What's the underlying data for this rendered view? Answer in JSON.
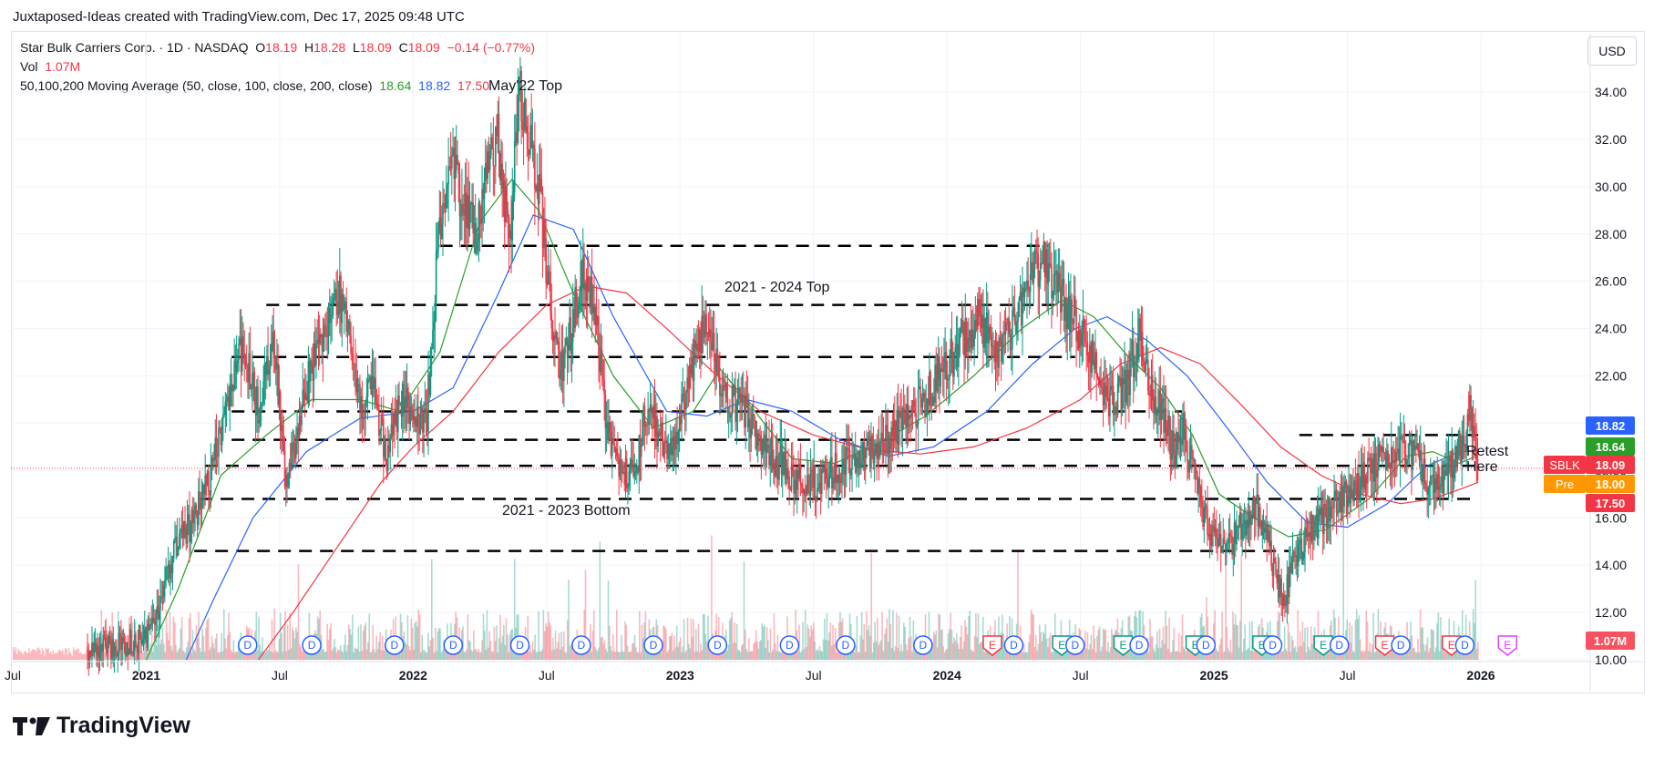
{
  "header": {
    "attribution": "Juxtaposed-Ideas created with TradingView.com, Dec 17, 2025 09:48 UTC"
  },
  "legend": {
    "symbol_line": "Star Bulk Carriers Corp. · 1D · NASDAQ",
    "o_label": "O",
    "o_value": "18.19",
    "h_label": "H",
    "h_value": "18.28",
    "l_label": "L",
    "l_value": "18.09",
    "c_label": "C",
    "c_value": "18.09",
    "change": "−0.14 (−0.77%)",
    "vol_label": "Vol",
    "vol_value": "1.07M",
    "ma_label": "50,100,200 Moving Average (50, close, 100, close, 200, close)",
    "ma50": "18.64",
    "ma100": "18.82",
    "ma200": "17.50"
  },
  "currency_button": "USD",
  "colors": {
    "up": "#089981",
    "down": "#f23645",
    "ma50": "#2a9d2a",
    "ma100": "#2962ff",
    "ma200": "#f23645",
    "pre": "#ff9800",
    "vol_badge": "#f7525f"
  },
  "price_labels": [
    {
      "label": "",
      "value": "18.82",
      "color": "#2962ff"
    },
    {
      "label": "",
      "value": "18.64",
      "color": "#2a9d2a"
    },
    {
      "label": "SBLK",
      "value": "18.09",
      "color": "#f23645"
    },
    {
      "label": "Pre",
      "value": "18.00",
      "color": "#ff9800"
    },
    {
      "label": "",
      "value": "17.50",
      "color": "#f23645"
    }
  ],
  "volume_badge": "1.07M",
  "annotations": {
    "may22": "May'22 Top",
    "top_2124": "2021 - 2024 Top",
    "bottom_2123": "2021 - 2023 Bottom",
    "retest_1": "Retest",
    "retest_2": "Here"
  },
  "event_markers": [
    {
      "label": "D",
      "t": 2021.38
    },
    {
      "label": "D",
      "t": 2021.62
    },
    {
      "label": "D",
      "t": 2021.93
    },
    {
      "label": "D",
      "t": 2022.15
    },
    {
      "label": "D",
      "t": 2022.4
    },
    {
      "label": "D",
      "t": 2022.63
    },
    {
      "label": "D",
      "t": 2022.9
    },
    {
      "label": "D",
      "t": 2023.14
    },
    {
      "label": "D",
      "t": 2023.41
    },
    {
      "label": "D",
      "t": 2023.62
    },
    {
      "label": "D",
      "t": 2023.91
    },
    {
      "label": "E",
      "t": 2024.17
    },
    {
      "label": "D",
      "t": 2024.25
    },
    {
      "label": "E",
      "t": 2024.43
    },
    {
      "label": "D",
      "t": 2024.48
    },
    {
      "label": "E",
      "t": 2024.66
    },
    {
      "label": "D",
      "t": 2024.72
    },
    {
      "label": "E",
      "t": 2024.93
    },
    {
      "label": "D",
      "t": 2024.97
    },
    {
      "label": "E",
      "t": 2025.18
    },
    {
      "label": "D",
      "t": 2025.22
    },
    {
      "label": "E",
      "t": 2025.41
    },
    {
      "label": "D",
      "t": 2025.47
    },
    {
      "label": "E",
      "t": 2025.64
    },
    {
      "label": "D",
      "t": 2025.7
    },
    {
      "label": "E",
      "t": 2025.89
    },
    {
      "label": "D",
      "t": 2025.94
    },
    {
      "label": "E",
      "t": 2026.1
    }
  ],
  "chart_data": {
    "type": "candlestick",
    "title": "Star Bulk Carriers Corp. · 1D · NASDAQ",
    "y_axis": {
      "ticks": [
        "10.00",
        "12.00",
        "14.00",
        "16.00",
        "18.00",
        "20.00",
        "22.00",
        "24.00",
        "26.00",
        "28.00",
        "30.00",
        "32.00",
        "34.00"
      ],
      "range": [
        10,
        34.6
      ]
    },
    "x_axis": {
      "ticks": [
        "Jul",
        "2021",
        "Jul",
        "2022",
        "Jul",
        "2023",
        "Jul",
        "2024",
        "Jul",
        "2025",
        "Jul",
        "2026"
      ],
      "tick_times": [
        2020.5,
        2021.0,
        2021.5,
        2022.0,
        2022.5,
        2023.0,
        2023.5,
        2024.0,
        2024.5,
        2025.0,
        2025.5,
        2026.0
      ],
      "range": [
        2020.5,
        2026.0
      ]
    },
    "price_series": {
      "name": "SBLK",
      "points": [
        [
          2020.78,
          10.4
        ],
        [
          2020.9,
          10.6
        ],
        [
          2021.0,
          11.0
        ],
        [
          2021.05,
          12.4
        ],
        [
          2021.1,
          14.5
        ],
        [
          2021.17,
          15.8
        ],
        [
          2021.24,
          17.5
        ],
        [
          2021.3,
          21.0
        ],
        [
          2021.36,
          23.2
        ],
        [
          2021.42,
          20.5
        ],
        [
          2021.48,
          24.0
        ],
        [
          2021.52,
          17.2
        ],
        [
          2021.56,
          19.5
        ],
        [
          2021.62,
          22.5
        ],
        [
          2021.68,
          24.5
        ],
        [
          2021.72,
          25.5
        ],
        [
          2021.76,
          24.0
        ],
        [
          2021.8,
          20.5
        ],
        [
          2021.85,
          21.5
        ],
        [
          2021.9,
          18.5
        ],
        [
          2021.95,
          21.0
        ],
        [
          2022.0,
          20.5
        ],
        [
          2022.05,
          20.0
        ],
        [
          2022.09,
          27.0
        ],
        [
          2022.14,
          31.5
        ],
        [
          2022.19,
          29.0
        ],
        [
          2022.24,
          28.0
        ],
        [
          2022.28,
          31.0
        ],
        [
          2022.32,
          32.0
        ],
        [
          2022.36,
          27.5
        ],
        [
          2022.4,
          34.0
        ],
        [
          2022.43,
          32.5
        ],
        [
          2022.47,
          30.0
        ],
        [
          2022.52,
          24.5
        ],
        [
          2022.56,
          22.0
        ],
        [
          2022.6,
          24.5
        ],
        [
          2022.64,
          26.5
        ],
        [
          2022.69,
          24.0
        ],
        [
          2022.73,
          19.5
        ],
        [
          2022.78,
          17.5
        ],
        [
          2022.84,
          18.5
        ],
        [
          2022.88,
          21.0
        ],
        [
          2022.92,
          19.5
        ],
        [
          2022.97,
          18.7
        ],
        [
          2023.02,
          21.5
        ],
        [
          2023.07,
          23.5
        ],
        [
          2023.11,
          24.5
        ],
        [
          2023.14,
          22.0
        ],
        [
          2023.18,
          21.0
        ],
        [
          2023.24,
          20.5
        ],
        [
          2023.3,
          19.0
        ],
        [
          2023.36,
          18.5
        ],
        [
          2023.42,
          17.8
        ],
        [
          2023.47,
          17.4
        ],
        [
          2023.53,
          17.6
        ],
        [
          2023.58,
          18.0
        ],
        [
          2023.64,
          18.4
        ],
        [
          2023.7,
          18.8
        ],
        [
          2023.76,
          19.3
        ],
        [
          2023.82,
          19.8
        ],
        [
          2023.88,
          20.5
        ],
        [
          2023.94,
          21.5
        ],
        [
          2024.0,
          22.5
        ],
        [
          2024.06,
          23.5
        ],
        [
          2024.12,
          24.5
        ],
        [
          2024.18,
          23.0
        ],
        [
          2024.24,
          24.0
        ],
        [
          2024.3,
          25.5
        ],
        [
          2024.36,
          27.3
        ],
        [
          2024.4,
          26.0
        ],
        [
          2024.44,
          25.0
        ],
        [
          2024.48,
          24.5
        ],
        [
          2024.53,
          23.0
        ],
        [
          2024.58,
          21.5
        ],
        [
          2024.63,
          20.8
        ],
        [
          2024.68,
          22.0
        ],
        [
          2024.72,
          23.8
        ],
        [
          2024.76,
          21.5
        ],
        [
          2024.8,
          20.5
        ],
        [
          2024.85,
          18.8
        ],
        [
          2024.88,
          19.8
        ],
        [
          2024.92,
          18.0
        ],
        [
          2024.96,
          16.0
        ],
        [
          2025.0,
          15.0
        ],
        [
          2025.05,
          14.8
        ],
        [
          2025.1,
          15.7
        ],
        [
          2025.16,
          16.5
        ],
        [
          2025.21,
          14.5
        ],
        [
          2025.26,
          12.5
        ],
        [
          2025.31,
          14.5
        ],
        [
          2025.36,
          15.5
        ],
        [
          2025.41,
          16.0
        ],
        [
          2025.46,
          16.5
        ],
        [
          2025.51,
          17.0
        ],
        [
          2025.56,
          17.8
        ],
        [
          2025.61,
          18.3
        ],
        [
          2025.66,
          18.8
        ],
        [
          2025.71,
          19.0
        ],
        [
          2025.76,
          18.5
        ],
        [
          2025.81,
          17.2
        ],
        [
          2025.86,
          17.8
        ],
        [
          2025.9,
          18.5
        ],
        [
          2025.94,
          19.5
        ],
        [
          2025.96,
          20.5
        ],
        [
          2025.98,
          19.5
        ],
        [
          2025.99,
          18.09
        ]
      ]
    },
    "moving_averages": [
      {
        "name": "MA 50",
        "points": [
          [
            2021.0,
            10.0
          ],
          [
            2021.12,
            13.0
          ],
          [
            2021.28,
            17.8
          ],
          [
            2021.45,
            19.5
          ],
          [
            2021.62,
            21.0
          ],
          [
            2021.8,
            21.0
          ],
          [
            2021.95,
            20.5
          ],
          [
            2022.1,
            23.0
          ],
          [
            2022.25,
            28.5
          ],
          [
            2022.37,
            30.3
          ],
          [
            2022.47,
            29.0
          ],
          [
            2022.6,
            25.5
          ],
          [
            2022.75,
            22.0
          ],
          [
            2022.9,
            19.8
          ],
          [
            2023.05,
            20.5
          ],
          [
            2023.15,
            22.3
          ],
          [
            2023.28,
            20.5
          ],
          [
            2023.42,
            18.5
          ],
          [
            2023.58,
            18.3
          ],
          [
            2023.75,
            19.2
          ],
          [
            2023.92,
            20.3
          ],
          [
            2024.1,
            22.0
          ],
          [
            2024.28,
            24.0
          ],
          [
            2024.43,
            25.2
          ],
          [
            2024.55,
            24.5
          ],
          [
            2024.68,
            22.8
          ],
          [
            2024.8,
            21.5
          ],
          [
            2024.92,
            19.5
          ],
          [
            2025.02,
            17.0
          ],
          [
            2025.15,
            16.0
          ],
          [
            2025.28,
            15.2
          ],
          [
            2025.42,
            15.5
          ],
          [
            2025.58,
            16.8
          ],
          [
            2025.72,
            18.6
          ],
          [
            2025.82,
            18.8
          ],
          [
            2025.92,
            18.3
          ],
          [
            2025.99,
            18.64
          ]
        ]
      },
      {
        "name": "MA 100",
        "points": [
          [
            2021.15,
            10.0
          ],
          [
            2021.25,
            12.5
          ],
          [
            2021.4,
            16.0
          ],
          [
            2021.6,
            18.8
          ],
          [
            2021.8,
            20.2
          ],
          [
            2022.0,
            20.5
          ],
          [
            2022.15,
            21.5
          ],
          [
            2022.32,
            25.5
          ],
          [
            2022.45,
            28.8
          ],
          [
            2022.6,
            28.2
          ],
          [
            2022.75,
            24.5
          ],
          [
            2022.95,
            20.5
          ],
          [
            2023.1,
            20.3
          ],
          [
            2023.25,
            21.0
          ],
          [
            2023.42,
            20.5
          ],
          [
            2023.6,
            19.3
          ],
          [
            2023.78,
            18.6
          ],
          [
            2023.95,
            19.0
          ],
          [
            2024.15,
            20.5
          ],
          [
            2024.32,
            22.5
          ],
          [
            2024.48,
            24.0
          ],
          [
            2024.6,
            24.5
          ],
          [
            2024.75,
            23.5
          ],
          [
            2024.9,
            22.0
          ],
          [
            2025.05,
            19.8
          ],
          [
            2025.2,
            17.5
          ],
          [
            2025.35,
            15.8
          ],
          [
            2025.5,
            15.6
          ],
          [
            2025.65,
            16.6
          ],
          [
            2025.8,
            18.2
          ],
          [
            2025.92,
            18.8
          ],
          [
            2025.99,
            18.82
          ]
        ]
      },
      {
        "name": "MA 200",
        "points": [
          [
            2021.42,
            10.0
          ],
          [
            2021.55,
            12.0
          ],
          [
            2021.7,
            14.5
          ],
          [
            2021.88,
            17.5
          ],
          [
            2022.0,
            19.0
          ],
          [
            2022.15,
            20.5
          ],
          [
            2022.32,
            23.0
          ],
          [
            2022.5,
            25.0
          ],
          [
            2022.65,
            25.8
          ],
          [
            2022.8,
            25.5
          ],
          [
            2022.95,
            24.0
          ],
          [
            2023.12,
            22.2
          ],
          [
            2023.3,
            20.5
          ],
          [
            2023.5,
            19.5
          ],
          [
            2023.7,
            18.9
          ],
          [
            2023.9,
            18.7
          ],
          [
            2024.1,
            19.0
          ],
          [
            2024.3,
            19.8
          ],
          [
            2024.5,
            21.0
          ],
          [
            2024.65,
            22.5
          ],
          [
            2024.8,
            23.2
          ],
          [
            2024.95,
            22.5
          ],
          [
            2025.1,
            20.8
          ],
          [
            2025.25,
            19.0
          ],
          [
            2025.4,
            17.8
          ],
          [
            2025.55,
            17.0
          ],
          [
            2025.7,
            16.6
          ],
          [
            2025.82,
            16.8
          ],
          [
            2025.92,
            17.2
          ],
          [
            2025.99,
            17.5
          ]
        ]
      }
    ],
    "horizontal_levels": [
      {
        "y": 27.5,
        "x0": 2022.1,
        "x1": 2024.38
      },
      {
        "y": 25.0,
        "x0": 2021.45,
        "x1": 2024.44
      },
      {
        "y": 22.8,
        "x0": 2021.32,
        "x1": 2024.48
      },
      {
        "y": 20.5,
        "x0": 2021.32,
        "x1": 2024.88
      },
      {
        "y": 19.3,
        "x0": 2021.32,
        "x1": 2024.88
      },
      {
        "y": 19.5,
        "x0": 2025.32,
        "x1": 2025.99
      },
      {
        "y": 18.2,
        "x0": 2021.22,
        "x1": 2025.99
      },
      {
        "y": 16.8,
        "x0": 2021.2,
        "x1": 2025.99
      },
      {
        "y": 14.6,
        "x0": 2021.18,
        "x1": 2025.28
      }
    ],
    "current_price": 18.09,
    "volume": {
      "max_value": 10.0,
      "note": "volume histogram in bottom band"
    }
  }
}
